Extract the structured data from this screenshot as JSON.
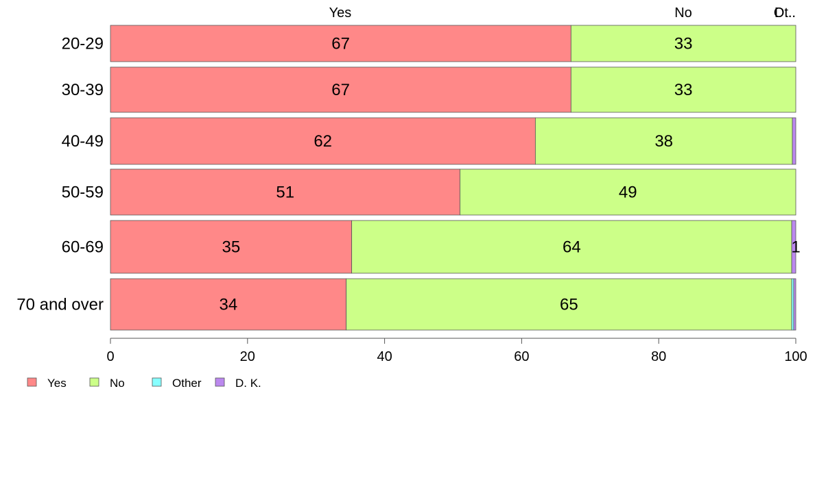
{
  "chart_data": {
    "type": "bar",
    "orientation": "horizontal",
    "stacked": true,
    "categories": [
      "20-29",
      "30-39",
      "40-49",
      "50-59",
      "60-69",
      "70 and over"
    ],
    "series": [
      {
        "name": "Yes",
        "color": "#ff8888",
        "values": [
          67.2,
          67.2,
          62.0,
          51.0,
          35.2,
          34.4
        ],
        "labels": [
          "67",
          "67",
          "62",
          "51",
          "35",
          "34"
        ]
      },
      {
        "name": "No",
        "color": "#ccff88",
        "values": [
          32.8,
          32.8,
          37.5,
          49.0,
          64.2,
          65.0
        ],
        "labels": [
          "33",
          "33",
          "38",
          "49",
          "64",
          "65"
        ]
      },
      {
        "name": "Other",
        "color": "#88ffff",
        "values": [
          0,
          0,
          0,
          0,
          0,
          0.3
        ],
        "labels": [
          "",
          "",
          "",
          "",
          "",
          ""
        ]
      },
      {
        "name": "D. K.",
        "color": "#bb88ee",
        "values": [
          0,
          0,
          0.5,
          0,
          0.6,
          0.3
        ],
        "labels": [
          "",
          "",
          "",
          "",
          "1",
          ""
        ]
      }
    ],
    "top_labels": [
      "Yes",
      "No",
      "Ot..",
      "D..."
    ],
    "xlim": [
      0,
      100
    ],
    "xticks": [
      "0",
      "20",
      "40",
      "60",
      "80",
      "100"
    ],
    "grid": false,
    "legend_position": "bottom-left"
  }
}
